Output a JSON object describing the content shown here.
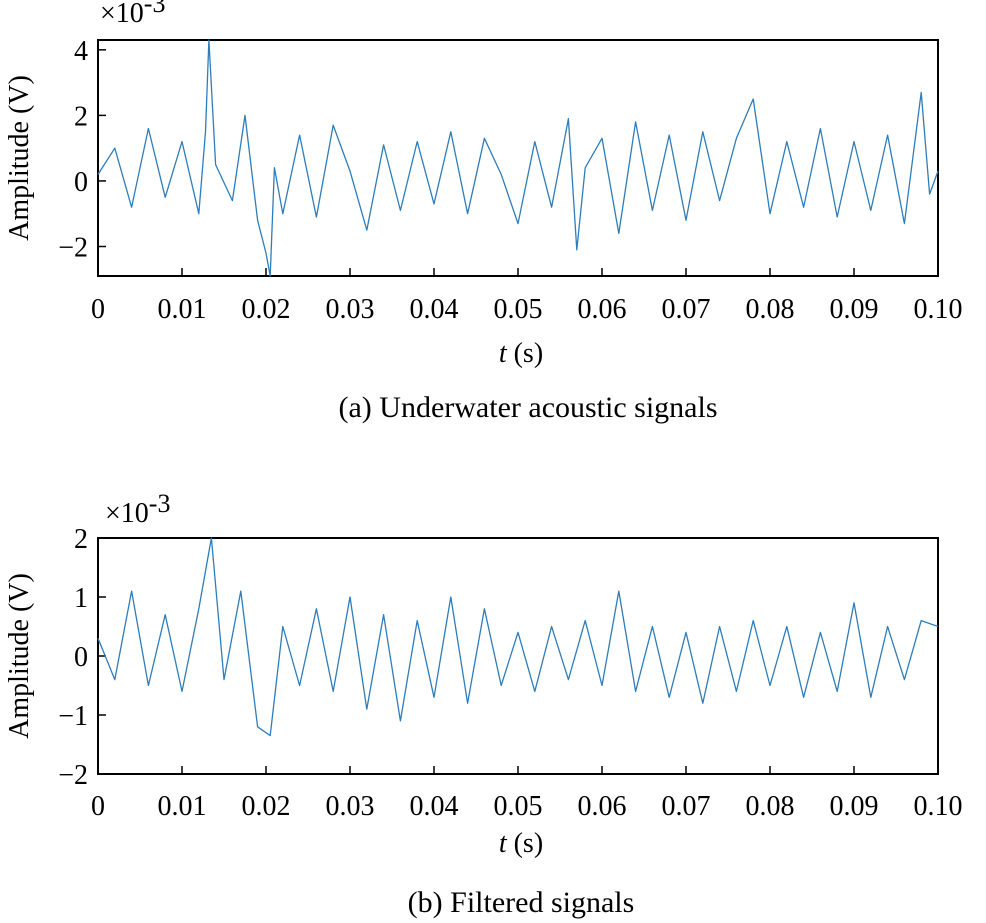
{
  "chart_data": [
    {
      "type": "line",
      "caption": "(a) Underwater acoustic signals",
      "xlabel_italic": "t",
      "xlabel_unit": "(s)",
      "ylabel": "Amplitude (V)",
      "y_multiplier": "×10",
      "y_exponent": "-3",
      "xlim": [
        0,
        0.1
      ],
      "ylim": [
        -2.9,
        4.3
      ],
      "x_ticks": [
        0,
        0.01,
        0.02,
        0.03,
        0.04,
        0.05,
        0.06,
        0.07,
        0.08,
        0.09,
        0.1
      ],
      "x_tick_labels": [
        "0",
        "0.01",
        "0.02",
        "0.03",
        "0.04",
        "0.05",
        "0.06",
        "0.07",
        "0.08",
        "0.09",
        "0.10"
      ],
      "y_ticks": [
        -2,
        0,
        2,
        4
      ],
      "y_tick_labels": [
        "−2",
        "0",
        "2",
        "4"
      ],
      "color": "#2e7dbb",
      "series": [
        {
          "x": [
            0,
            0.002,
            0.004,
            0.006,
            0.008,
            0.01,
            0.012,
            0.0128,
            0.0132,
            0.014,
            0.016,
            0.0175,
            0.019,
            0.02,
            0.0205,
            0.021,
            0.022,
            0.024,
            0.026,
            0.028,
            0.03,
            0.032,
            0.034,
            0.036,
            0.038,
            0.04,
            0.042,
            0.044,
            0.046,
            0.048,
            0.05,
            0.052,
            0.054,
            0.056,
            0.057,
            0.058,
            0.06,
            0.062,
            0.064,
            0.066,
            0.068,
            0.07,
            0.072,
            0.074,
            0.076,
            0.078,
            0.08,
            0.082,
            0.084,
            0.086,
            0.088,
            0.09,
            0.092,
            0.094,
            0.096,
            0.098,
            0.099,
            0.1
          ],
          "y": [
            0.2,
            1.0,
            -0.8,
            1.6,
            -0.5,
            1.2,
            -1.0,
            1.5,
            4.3,
            0.5,
            -0.6,
            2.0,
            -1.2,
            -2.2,
            -2.9,
            0.4,
            -1.0,
            1.4,
            -1.1,
            1.7,
            0.3,
            -1.5,
            1.1,
            -0.9,
            1.2,
            -0.7,
            1.5,
            -1.0,
            1.3,
            0.2,
            -1.3,
            1.2,
            -0.8,
            1.9,
            -2.1,
            0.4,
            1.3,
            -1.6,
            1.8,
            -0.9,
            1.4,
            -1.2,
            1.5,
            -0.6,
            1.3,
            2.5,
            -1.0,
            1.2,
            -0.8,
            1.6,
            -1.1,
            1.2,
            -0.9,
            1.4,
            -1.3,
            2.7,
            -0.4,
            0.3
          ]
        }
      ]
    },
    {
      "type": "line",
      "caption": "(b) Filtered signals",
      "xlabel_italic": "t",
      "xlabel_unit": "(s)",
      "ylabel": "Amplitude (V)",
      "y_multiplier": "×10",
      "y_exponent": "-3",
      "xlim": [
        0,
        0.1
      ],
      "ylim": [
        -2,
        2
      ],
      "x_ticks": [
        0,
        0.01,
        0.02,
        0.03,
        0.04,
        0.05,
        0.06,
        0.07,
        0.08,
        0.09,
        0.1
      ],
      "x_tick_labels": [
        "0",
        "0.01",
        "0.02",
        "0.03",
        "0.04",
        "0.05",
        "0.06",
        "0.07",
        "0.08",
        "0.09",
        "0.10"
      ],
      "y_ticks": [
        -2,
        -1,
        0,
        1,
        2
      ],
      "y_tick_labels": [
        "−2",
        "−1",
        "0",
        "1",
        "2"
      ],
      "color": "#2e7dbb",
      "series": [
        {
          "x": [
            0,
            0.002,
            0.004,
            0.006,
            0.008,
            0.01,
            0.012,
            0.0135,
            0.015,
            0.017,
            0.019,
            0.0205,
            0.022,
            0.024,
            0.026,
            0.028,
            0.03,
            0.032,
            0.034,
            0.036,
            0.038,
            0.04,
            0.042,
            0.044,
            0.046,
            0.048,
            0.05,
            0.052,
            0.054,
            0.056,
            0.058,
            0.06,
            0.062,
            0.064,
            0.066,
            0.068,
            0.07,
            0.072,
            0.074,
            0.076,
            0.078,
            0.08,
            0.082,
            0.084,
            0.086,
            0.088,
            0.09,
            0.092,
            0.094,
            0.096,
            0.098,
            0.1
          ],
          "y": [
            0.3,
            -0.4,
            1.1,
            -0.5,
            0.7,
            -0.6,
            0.8,
            2.0,
            -0.4,
            1.1,
            -1.2,
            -1.35,
            0.5,
            -0.5,
            0.8,
            -0.6,
            1.0,
            -0.9,
            0.7,
            -1.1,
            0.6,
            -0.7,
            1.0,
            -0.8,
            0.8,
            -0.5,
            0.4,
            -0.6,
            0.5,
            -0.4,
            0.6,
            -0.5,
            1.1,
            -0.6,
            0.5,
            -0.7,
            0.4,
            -0.8,
            0.5,
            -0.6,
            0.6,
            -0.5,
            0.5,
            -0.7,
            0.4,
            -0.6,
            0.9,
            -0.7,
            0.5,
            -0.4,
            0.6,
            0.5
          ]
        }
      ]
    }
  ]
}
